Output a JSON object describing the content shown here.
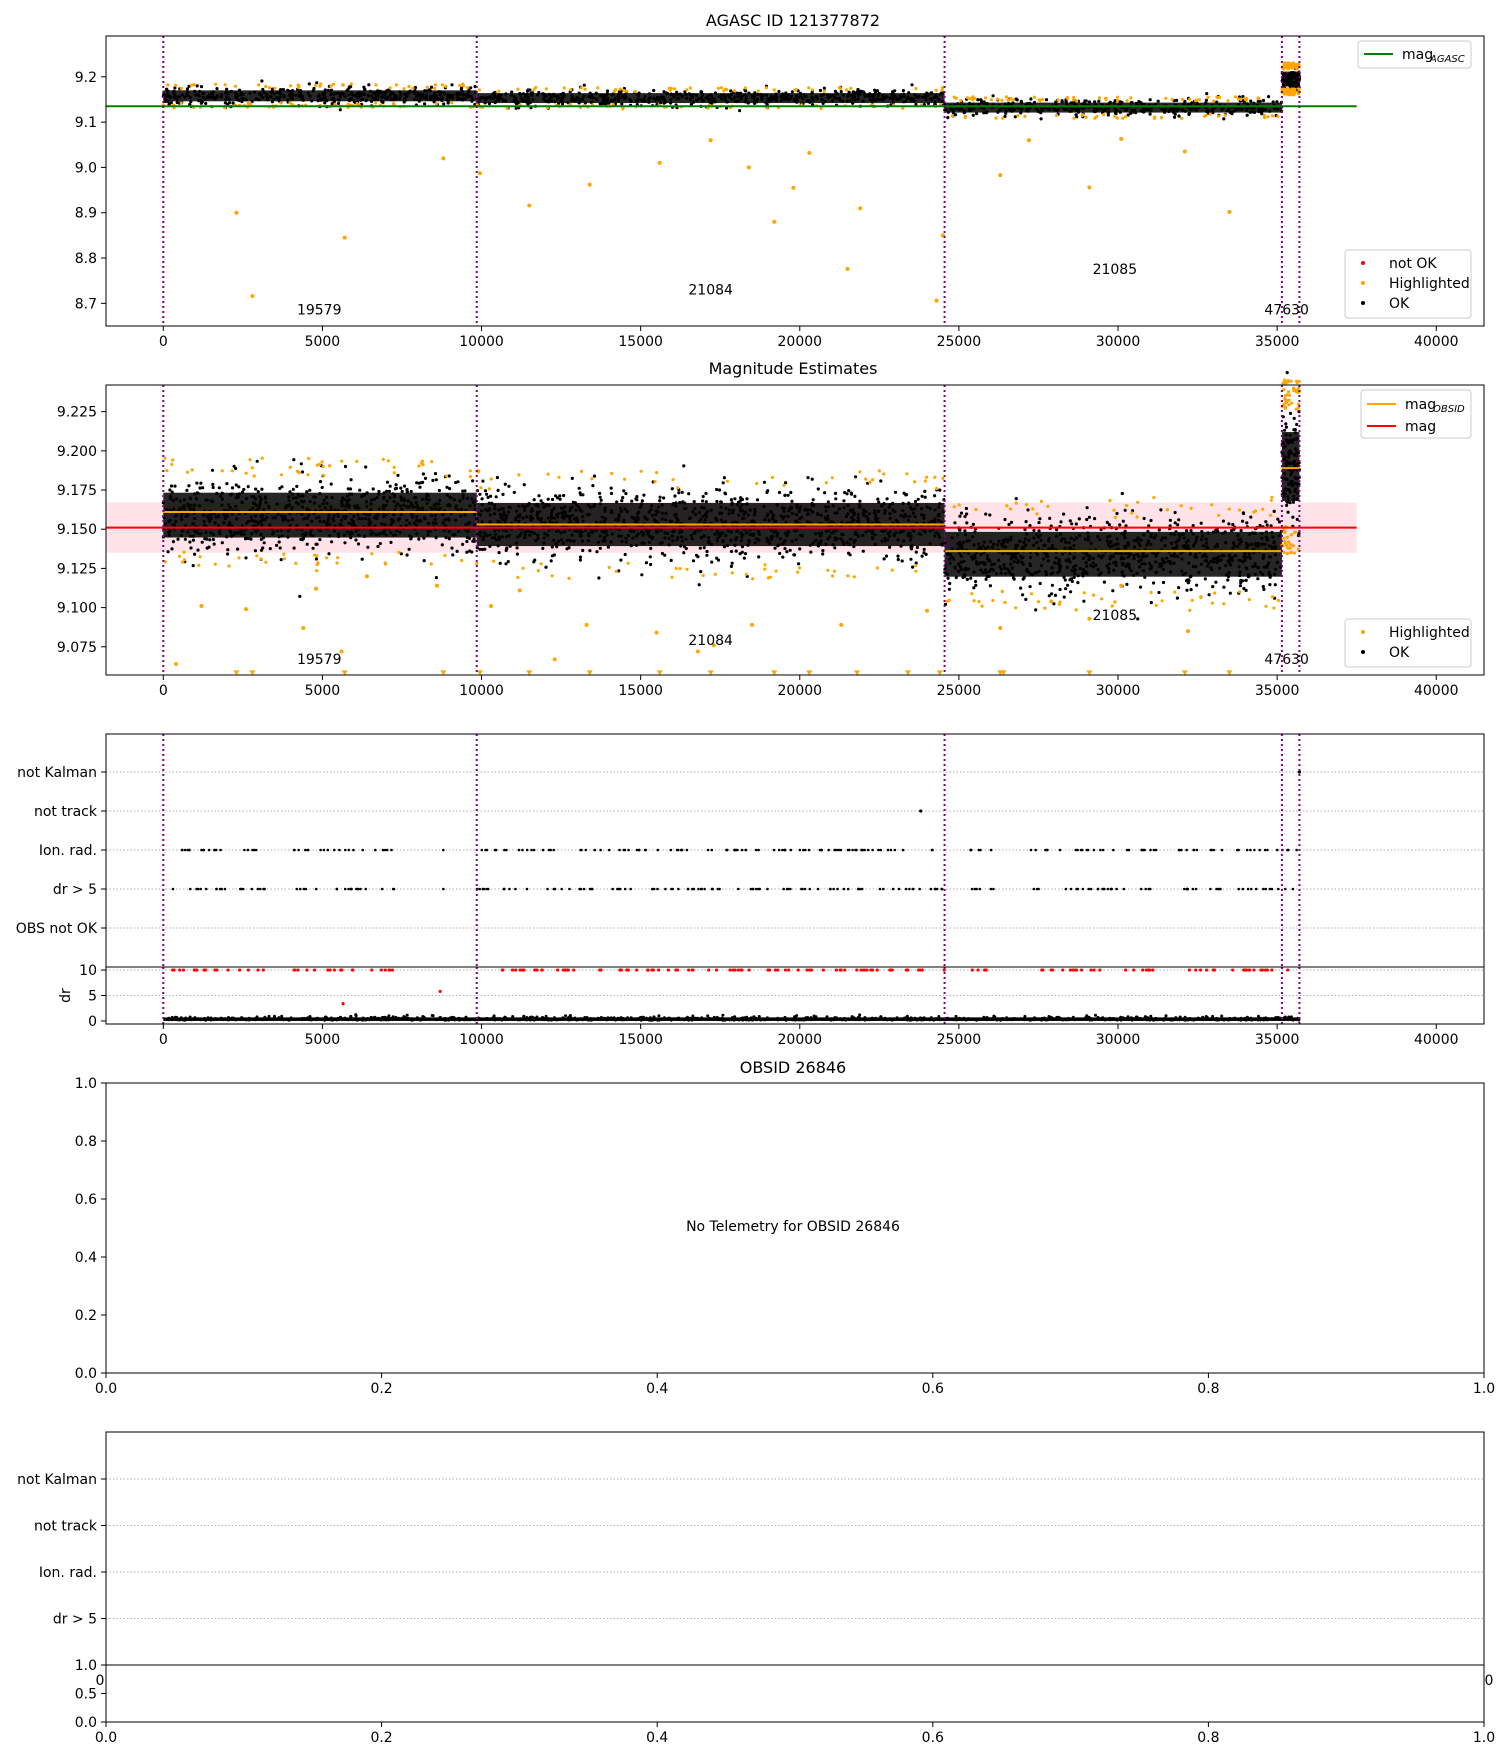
{
  "figure": {
    "panels": {
      "p1": {
        "title": "AGASC ID 121377872",
        "xlim": [
          -1800,
          41500
        ],
        "ylim": [
          8.65,
          9.29
        ],
        "xticks": [
          0,
          5000,
          10000,
          15000,
          20000,
          25000,
          30000,
          35000,
          40000
        ],
        "yticks": [
          8.7,
          8.8,
          8.9,
          9.0,
          9.1,
          9.2
        ],
        "ytick_labels": [
          "8.7",
          "8.8",
          "8.9",
          "9.0",
          "9.1",
          "9.2"
        ],
        "vlines_x": [
          0,
          9850,
          24550,
          35150,
          35700
        ],
        "obsid_labels": [
          {
            "text": "19579",
            "x": 4900,
            "y": 8.675
          },
          {
            "text": "21084",
            "x": 17200,
            "y": 8.72
          },
          {
            "text": "21085",
            "x": 29900,
            "y": 8.765
          },
          {
            "text": "47630",
            "x": 35300,
            "y": 8.675
          }
        ],
        "legend_top": [
          {
            "label": "mag",
            "sub": "AGASC",
            "color": "#008000"
          }
        ],
        "legend_bottom": [
          {
            "label": "not OK",
            "color": "#ff0000"
          },
          {
            "label": "Highlighted",
            "color": "#ffa500"
          },
          {
            "label": "OK",
            "color": "#000000"
          }
        ]
      },
      "p2": {
        "title": "Magnitude Estimates",
        "xlim": [
          -1800,
          41500
        ],
        "ylim": [
          9.057,
          9.242
        ],
        "xticks": [
          0,
          5000,
          10000,
          15000,
          20000,
          25000,
          30000,
          35000,
          40000
        ],
        "yticks": [
          9.075,
          9.1,
          9.125,
          9.15,
          9.175,
          9.2,
          9.225
        ],
        "ytick_labels": [
          "9.075",
          "9.100",
          "9.125",
          "9.150",
          "9.175",
          "9.200",
          "9.225"
        ],
        "vlines_x": [
          0,
          9850,
          24550,
          35150,
          35700
        ],
        "obsid_labels": [
          {
            "text": "19579",
            "x": 4900,
            "y": 9.064
          },
          {
            "text": "21084",
            "x": 17200,
            "y": 9.076
          },
          {
            "text": "21085",
            "x": 29900,
            "y": 9.092
          },
          {
            "text": "47630",
            "x": 35300,
            "y": 9.064
          }
        ],
        "legend_top": [
          {
            "label": "mag",
            "sub": "OBSID",
            "color": "#ffa500"
          },
          {
            "label": "mag",
            "sub": "",
            "color": "#ff0000"
          }
        ],
        "legend_bottom": [
          {
            "label": "Highlighted",
            "color": "#ffa500"
          },
          {
            "label": "OK",
            "color": "#000000"
          }
        ]
      },
      "p3": {
        "xlim": [
          -1800,
          41500
        ],
        "flag_labels": [
          "not Kalman",
          "not track",
          "Ion. rad.",
          "dr > 5",
          "OBS not OK"
        ],
        "vlines_x": [
          0,
          9850,
          24550,
          35150,
          35700
        ]
      },
      "p3dr": {
        "ylabel": "dr",
        "xlim": [
          -1800,
          41500
        ],
        "ylim": [
          -0.6,
          10.6
        ],
        "xticks": [
          0,
          5000,
          10000,
          15000,
          20000,
          25000,
          30000,
          35000,
          40000
        ],
        "yticks": [
          0,
          5,
          10
        ],
        "ytick_labels": [
          "0",
          "5",
          "10"
        ]
      },
      "p4": {
        "title": "OBSID 26846",
        "message": "No Telemetry for OBSID 26846",
        "xticks": [
          0,
          0.2,
          0.4,
          0.6,
          0.8,
          1.0
        ],
        "xtick_labels": [
          "0.0",
          "0.2",
          "0.4",
          "0.6",
          "0.8",
          "1.0"
        ],
        "yticks": [
          0,
          0.2,
          0.4,
          0.6,
          0.8,
          1.0
        ],
        "ytick_labels": [
          "0.0",
          "0.2",
          "0.4",
          "0.6",
          "0.8",
          "1.0"
        ]
      },
      "p5": {
        "flag_labels": [
          "not Kalman",
          "not track",
          "Ion. rad.",
          "dr > 5"
        ],
        "hidden_tick_left": "0",
        "hidden_tick_right": "0"
      },
      "p5small": {
        "yticks": [
          0,
          0.5,
          1.0
        ],
        "ytick_labels": [
          "0.0",
          "0.5",
          "1.0"
        ],
        "xticks": [
          0,
          0.2,
          0.4,
          0.6,
          0.8,
          1.0
        ],
        "xtick_labels": [
          "0.0",
          "0.2",
          "0.4",
          "0.6",
          "0.8",
          "1.0"
        ]
      }
    }
  },
  "chart_data": [
    {
      "type": "scatter",
      "title": "AGASC ID 121377872",
      "xlim": [
        -1800,
        41500
      ],
      "ylim": [
        8.65,
        9.29
      ],
      "series": [
        {
          "name": "mag",
          "type": "line",
          "x": [
            -1800,
            37500
          ],
          "values": [
            9.135,
            9.135
          ]
        },
        {
          "name": "OK",
          "band_segments": [
            {
              "x0": 0,
              "x1": 9850,
              "center": 9.158,
              "half_width": 0.022
            },
            {
              "x0": 9850,
              "x1": 24550,
              "center": 9.153,
              "half_width": 0.02
            },
            {
              "x0": 24550,
              "x1": 35150,
              "center": 9.132,
              "half_width": 0.02
            },
            {
              "x0": 35150,
              "x1": 35700,
              "center": 9.195,
              "half_width": 0.03
            }
          ]
        },
        {
          "name": "Highlighted",
          "x": [
            2300,
            2800,
            5700,
            8800,
            9950,
            11500,
            13400,
            15600,
            17200,
            18400,
            19200,
            19800,
            20300,
            21500,
            21900,
            24300,
            24500,
            26300,
            27200,
            29100,
            30100,
            32100,
            33500
          ],
          "values": [
            8.9,
            8.716,
            8.845,
            9.02,
            8.987,
            8.916,
            8.962,
            9.01,
            9.06,
            9.0,
            8.88,
            8.955,
            9.032,
            8.776,
            8.91,
            8.706,
            8.85,
            8.983,
            9.06,
            8.956,
            9.063,
            9.035,
            8.902
          ]
        }
      ]
    },
    {
      "type": "scatter",
      "title": "Magnitude Estimates",
      "xlim": [
        -1800,
        41500
      ],
      "ylim": [
        9.057,
        9.242
      ],
      "series": [
        {
          "name": "mag",
          "type": "line",
          "x": [
            -1800,
            37500
          ],
          "values": [
            9.151,
            9.151
          ],
          "band": [
            9.135,
            9.167
          ]
        },
        {
          "name": "mag",
          "type": "step",
          "segments": [
            {
              "x0": 0,
              "x1": 9850,
              "value": 9.161
            },
            {
              "x0": 9850,
              "x1": 24550,
              "value": 9.153
            },
            {
              "x0": 24550,
              "x1": 35150,
              "value": 9.136
            },
            {
              "x0": 35150,
              "x1": 35700,
              "value": 9.189
            }
          ]
        },
        {
          "name": "OK",
          "band_segments": [
            {
              "x0": 0,
              "x1": 9850,
              "center": 9.159,
              "half_width": 0.026
            },
            {
              "x0": 9850,
              "x1": 24550,
              "center": 9.153,
              "half_width": 0.025
            },
            {
              "x0": 24550,
              "x1": 35150,
              "center": 9.134,
              "half_width": 0.026
            },
            {
              "x0": 35150,
              "x1": 35700,
              "center": 9.19,
              "half_width": 0.04
            }
          ]
        },
        {
          "name": "Highlighted",
          "x": [
            400,
            1200,
            2600,
            4400,
            4800,
            5600,
            6400,
            8600,
            9900,
            10300,
            11200,
            12300,
            13300,
            15500,
            16800,
            17300,
            18500,
            21300,
            24000,
            26300,
            27900,
            29100,
            30100,
            32200
          ],
          "values": [
            9.064,
            9.101,
            9.099,
            9.087,
            9.112,
            9.072,
            9.12,
            9.114,
            9.187,
            9.101,
            9.111,
            9.067,
            9.089,
            9.084,
            9.072,
            9.076,
            9.089,
            9.089,
            9.098,
            9.087,
            9.104,
            9.093,
            9.114,
            9.085
          ]
        },
        {
          "name": "Highlighted",
          "type": "below_range_markers",
          "x": [
            2300,
            2800,
            5700,
            8800,
            9950,
            11500,
            13400,
            15600,
            17200,
            19200,
            20300,
            21800,
            23400,
            24400,
            26300,
            26400,
            29100,
            32100,
            33500
          ],
          "values": [
            9.058,
            9.058,
            9.058,
            9.058,
            9.058,
            9.058,
            9.058,
            9.058,
            9.058,
            9.058,
            9.058,
            9.058,
            9.058,
            9.058,
            9.058,
            9.058,
            9.058,
            9.058,
            9.058
          ]
        }
      ]
    },
    {
      "type": "scatter",
      "title": "",
      "categories": [
        "not Kalman",
        "not track",
        "Ion. rad.",
        "dr > 5",
        "OBS not OK"
      ],
      "series": [
        {
          "name": "not Kalman",
          "x": [
            35700
          ],
          "values": [
            "not Kalman"
          ]
        },
        {
          "name": "not track",
          "x": [
            23800
          ],
          "values": [
            "not track"
          ]
        },
        {
          "name": "Ion. rad.",
          "x_ranges": [
            [
              200,
              3200
            ],
            [
              4100,
              7300
            ],
            [
              8800,
              8800
            ],
            [
              9850,
              24550
            ],
            [
              25200,
              26100
            ],
            [
              27200,
              31200
            ],
            [
              31900,
              35700
            ]
          ],
          "values": [
            "Ion. rad."
          ]
        },
        {
          "name": "dr > 5",
          "x_ranges": [
            [
              200,
              3200
            ],
            [
              4100,
              7300
            ],
            [
              8800,
              8800
            ],
            [
              9850,
              24550
            ],
            [
              25200,
              26100
            ],
            [
              27200,
              31200
            ],
            [
              31900,
              35700
            ]
          ],
          "values": [
            "dr > 5"
          ]
        }
      ]
    },
    {
      "type": "scatter",
      "ylabel": "dr",
      "xlim": [
        -1800,
        41500
      ],
      "ylim": [
        -0.6,
        10.6
      ],
      "series": [
        {
          "name": "OK",
          "x_range": [
            0,
            35700
          ],
          "values": [
            0.2,
            1.0
          ]
        },
        {
          "name": "not OK",
          "x": [
            5650,
            8700
          ],
          "values": [
            3.4,
            5.8
          ],
          "note_x_ranges": [
            [
              200,
              3200
            ],
            [
              4100,
              7300
            ],
            [
              9850,
              24550
            ],
            [
              25200,
              26100
            ],
            [
              27200,
              31200
            ],
            [
              31900,
              35700
            ]
          ],
          "clipped_value": 10
        }
      ]
    }
  ]
}
